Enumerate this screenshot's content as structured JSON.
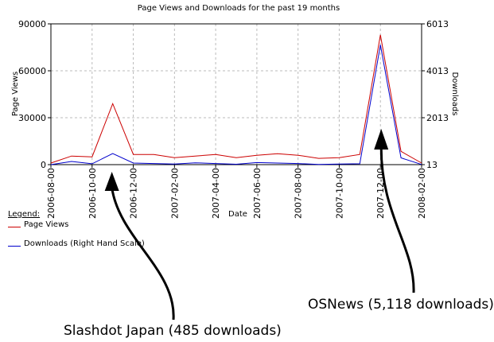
{
  "chart_data": {
    "type": "line",
    "title": "Page Views and Downloads for the past 19 months",
    "xlabel": "Date",
    "ylabel": "Page Views",
    "y2label": "Downloads",
    "ylim": [
      0,
      90000
    ],
    "y2lim": [
      13,
      6013
    ],
    "yticks": [
      0,
      30000,
      60000,
      90000
    ],
    "y2ticks": [
      13,
      2013,
      4013,
      6013
    ],
    "x_tick_labels": [
      "2006-08-00",
      "2006-10-00",
      "2006-12-00",
      "2007-02-00",
      "2007-04-00",
      "2007-06-00",
      "2007-08-00",
      "2007-10-00",
      "2007-12-00",
      "2008-02-00"
    ],
    "grid": true,
    "series": [
      {
        "name": "Page Views",
        "axis": "left",
        "color": "#cc0000",
        "values": [
          1000,
          5500,
          5000,
          39000,
          6500,
          6500,
          4500,
          5500,
          6500,
          4500,
          6000,
          7000,
          6000,
          4000,
          4500,
          6500,
          83000,
          8500,
          1000
        ]
      },
      {
        "name": "Downloads (Right Hand Scale)",
        "axis": "right",
        "color": "#0000cc",
        "values": [
          13,
          150,
          50,
          485,
          80,
          60,
          40,
          90,
          60,
          30,
          100,
          80,
          60,
          20,
          40,
          50,
          5118,
          300,
          20
        ]
      }
    ]
  },
  "legend": {
    "title": "Legend:",
    "items": [
      {
        "label": "Page Views",
        "color": "#cc0000"
      },
      {
        "label": "Downloads (Right Hand Scale)",
        "color": "#0000cc"
      }
    ]
  },
  "annotations": [
    {
      "text": "Slashdot Japan (485 downloads)",
      "point_index": 3
    },
    {
      "text": "OSNews (5,118 downloads)",
      "point_index": 16
    }
  ]
}
